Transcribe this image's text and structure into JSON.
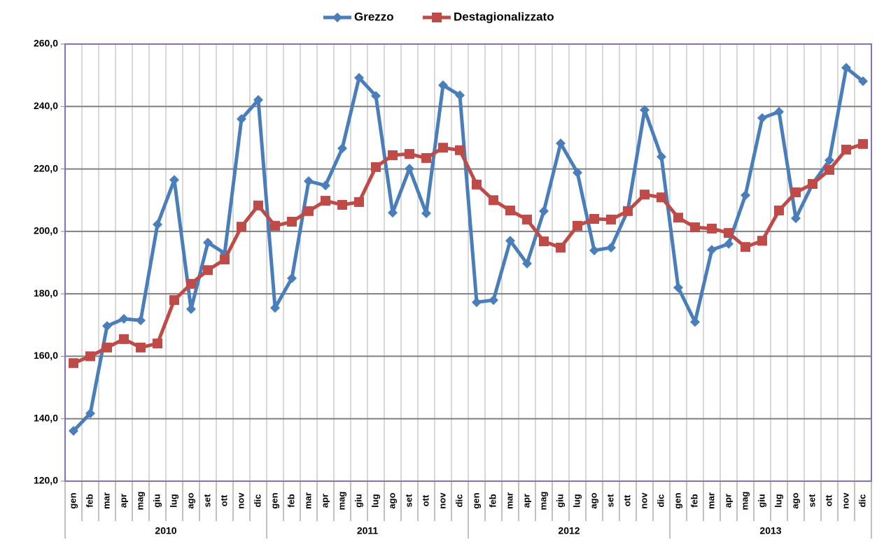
{
  "chart_data": {
    "type": "line",
    "categories": [
      "gen",
      "feb",
      "mar",
      "apr",
      "mag",
      "giu",
      "lug",
      "ago",
      "set",
      "ott",
      "nov",
      "dic",
      "gen",
      "feb",
      "mar",
      "apr",
      "mag",
      "giu",
      "lug",
      "ago",
      "set",
      "ott",
      "nov",
      "dic",
      "gen",
      "feb",
      "mar",
      "apr",
      "mag",
      "giu",
      "lug",
      "ago",
      "set",
      "ott",
      "nov",
      "dic",
      "gen",
      "feb",
      "mar",
      "apr",
      "mag",
      "giu",
      "lug",
      "ago",
      "set",
      "ott",
      "nov",
      "dic"
    ],
    "years": [
      "2010",
      "2011",
      "2012",
      "2013"
    ],
    "series": [
      {
        "name": "Grezzo",
        "color": "#4a7ebb",
        "marker": "diamond",
        "values": [
          136.1,
          141.7,
          169.7,
          172,
          171.5,
          202.2,
          216.5,
          175.1,
          196.4,
          193,
          236,
          242.1,
          175.5,
          185,
          216.1,
          214.7,
          226.6,
          249.2,
          243.4,
          206,
          220.1,
          205.8,
          246.8,
          243.6,
          177.3,
          178,
          197,
          189.7,
          206.5,
          228.2,
          218.8,
          193.9,
          194.8,
          206.7,
          238.9,
          223.9,
          182,
          171,
          194.1,
          196,
          211.6,
          236.3,
          238.3,
          204.2,
          215.2,
          222.8,
          252.4,
          248.1
        ]
      },
      {
        "name": "Destagionalizzato",
        "color": "#be4b48",
        "marker": "square",
        "values": [
          157.8,
          160,
          162.8,
          165.5,
          162.8,
          164.1,
          178,
          183.2,
          187.6,
          191,
          201.5,
          208.3,
          201.8,
          203.1,
          206.5,
          209.8,
          208.5,
          209.4,
          220.6,
          224.4,
          224.8,
          223.5,
          226.8,
          226,
          215,
          210,
          206.7,
          203.8,
          196.8,
          194.8,
          201.8,
          204,
          203.8,
          206.5,
          211.8,
          210.9,
          204.4,
          201.3,
          200.9,
          199.5,
          195,
          197,
          206.7,
          212.5,
          215.2,
          219.7,
          226.2,
          228
        ]
      }
    ],
    "ylim": [
      120,
      260
    ],
    "yticks": [
      {
        "value": 120,
        "label": "120,0"
      },
      {
        "value": 140,
        "label": "140,0"
      },
      {
        "value": 160,
        "label": "160,0"
      },
      {
        "value": 180,
        "label": "180,0"
      },
      {
        "value": 200,
        "label": "200,0"
      },
      {
        "value": 220,
        "label": "220,0"
      },
      {
        "value": 240,
        "label": "240,0"
      },
      {
        "value": 260,
        "label": "260,0"
      }
    ],
    "grid": true,
    "legend": "top"
  }
}
